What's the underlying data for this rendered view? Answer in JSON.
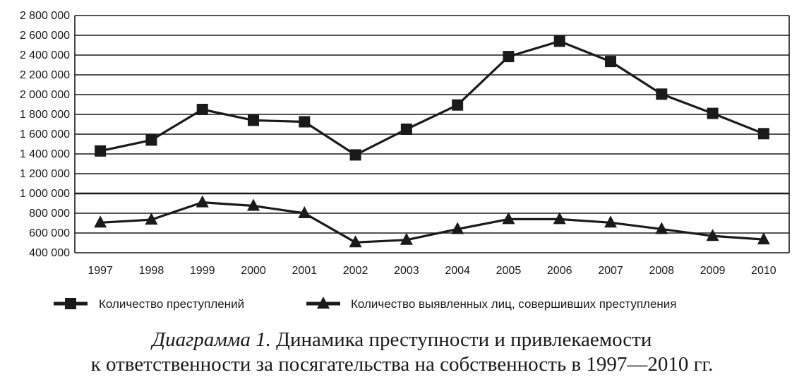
{
  "chart_data": {
    "type": "line",
    "categories": [
      "1997",
      "1998",
      "1999",
      "2000",
      "2001",
      "2002",
      "2003",
      "2004",
      "2005",
      "2006",
      "2007",
      "2008",
      "2009",
      "2010"
    ],
    "ylim": [
      400000,
      2800000
    ],
    "y_ticks": [
      400000,
      600000,
      800000,
      1000000,
      1200000,
      1400000,
      1600000,
      1800000,
      2000000,
      2200000,
      2400000,
      2600000,
      2800000
    ],
    "y_tick_labels": [
      "400 000",
      "600 000",
      "800 000",
      "1 000 000",
      "1 200 000",
      "1 400 000",
      "1 600 000",
      "1 800 000",
      "2 000 000",
      "2 200 000",
      "2 400 000",
      "2 600 000",
      "2 800 000"
    ],
    "grid": "horizontal",
    "legend_position": "bottom",
    "series": [
      {
        "name": "Количество преступлений",
        "marker": "square",
        "values": [
          1430000,
          1540000,
          1850000,
          1740000,
          1725000,
          1390000,
          1650000,
          1895000,
          2385000,
          2540000,
          2335000,
          2005000,
          1810000,
          1605000
        ]
      },
      {
        "name": "Количество выявленных лиц, совершивших преступления",
        "marker": "triangle",
        "values": [
          705000,
          735000,
          910000,
          875000,
          800000,
          505000,
          530000,
          640000,
          740000,
          740000,
          705000,
          640000,
          570000,
          535000
        ]
      }
    ]
  },
  "caption": {
    "label": "Диаграмма 1.",
    "line1": " Динамика преступности и привлекаемости",
    "line2": "к ответственности за посягательства на собственность в 1997—2010 гг."
  },
  "colors": {
    "line": "#1a1a1a",
    "grid": "#1a1a1a"
  }
}
